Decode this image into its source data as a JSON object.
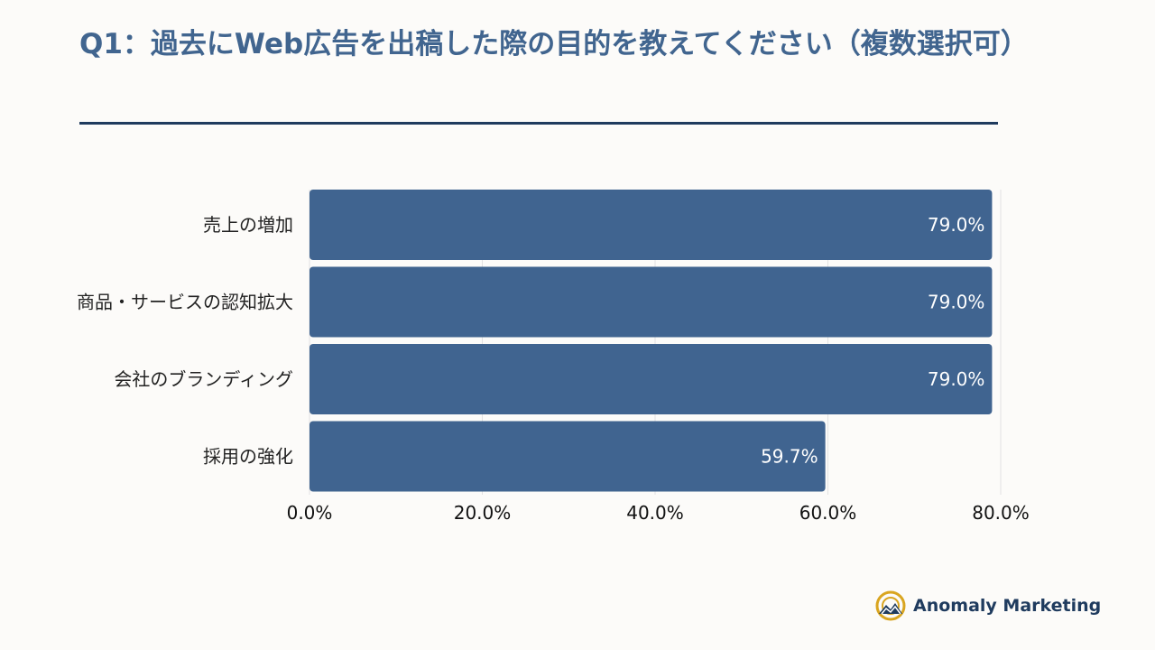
{
  "header": {
    "title": "Q1：過去にWeb広告を出稿した際の目的を教えてください（複数選択可）"
  },
  "chart_data": {
    "type": "bar",
    "orientation": "horizontal",
    "title": "",
    "xlabel": "",
    "ylabel": "",
    "categories": [
      "売上の増加",
      "商品・サービスの認知拡大",
      "会社のブランディング",
      "採用の強化"
    ],
    "values": [
      79.0,
      79.0,
      79.0,
      59.7
    ],
    "value_labels": [
      "79.0%",
      "79.0%",
      "79.0%",
      "59.7%"
    ],
    "xlim": [
      0,
      80
    ],
    "xticks": [
      0,
      20,
      40,
      60,
      80
    ],
    "xtick_labels": [
      "0.0%",
      "20.0%",
      "40.0%",
      "60.0%",
      "80.0%"
    ],
    "grid": "vertical",
    "legend": "none",
    "colors": {
      "bar": "#406490",
      "grid": "#e2e2e2"
    }
  },
  "brand": {
    "name": "Anomaly Marketing",
    "logo_icon": "mountain-sun-logo-icon",
    "colors": {
      "gold": "#d9a520",
      "navy": "#1f3b5e"
    }
  }
}
